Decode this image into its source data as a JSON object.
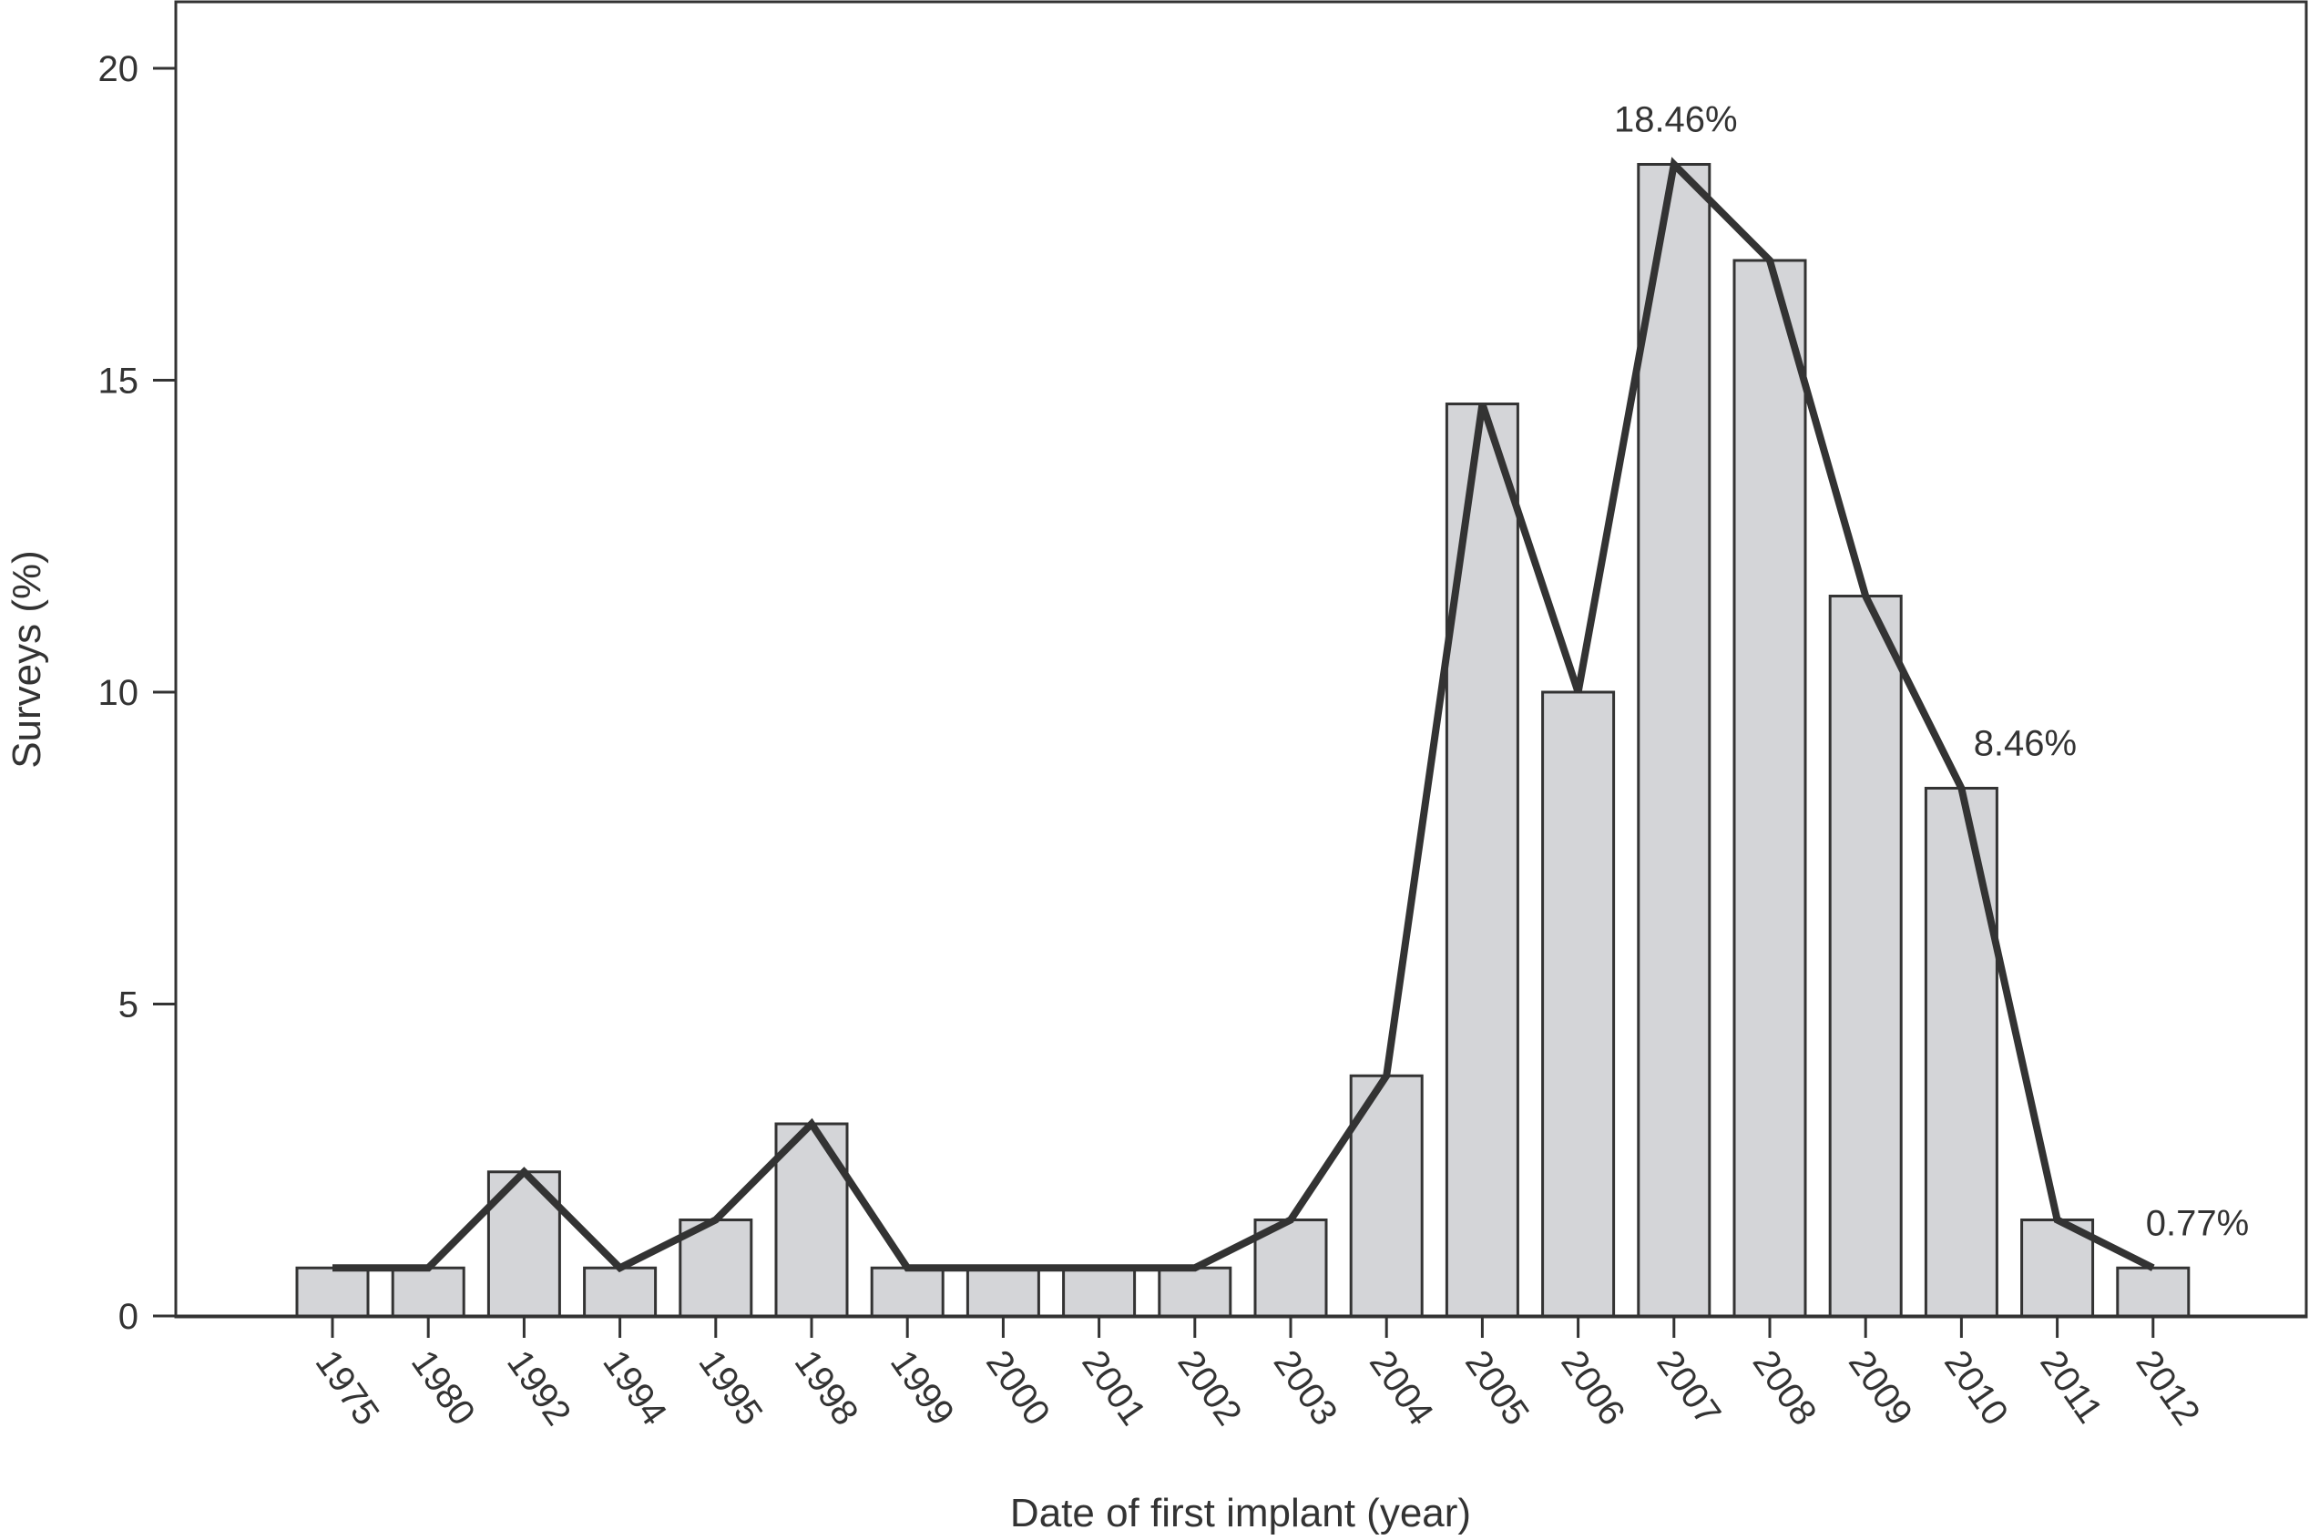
{
  "chart_data": {
    "type": "bar",
    "title": "",
    "xlabel": "Date of first implant (year)",
    "ylabel": "Surveys (%)",
    "ylim": [
      0,
      21
    ],
    "yticks": [
      0,
      5,
      10,
      15,
      20
    ],
    "grid": false,
    "legend": "none",
    "categories": [
      "1975",
      "1980",
      "1992",
      "1994",
      "1995",
      "1998",
      "1999",
      "2000",
      "2001",
      "2002",
      "2003",
      "2004",
      "2005",
      "2006",
      "2007",
      "2008",
      "2009",
      "2010",
      "2011",
      "2012"
    ],
    "values": [
      0.77,
      0.77,
      2.31,
      0.77,
      1.54,
      3.08,
      0.77,
      0.77,
      0.77,
      0.77,
      1.54,
      3.85,
      14.62,
      10.0,
      18.46,
      16.92,
      11.54,
      8.46,
      1.54,
      0.77
    ],
    "annotations": [
      {
        "category": "2007",
        "text": "18.46%"
      },
      {
        "category": "2010",
        "text": "8.46%"
      },
      {
        "category": "2012",
        "text": "0.77%"
      }
    ],
    "colors": {
      "bar_fill": "#d4d5d8",
      "bar_stroke": "#333333",
      "line": "#333333",
      "axis": "#333333"
    }
  }
}
